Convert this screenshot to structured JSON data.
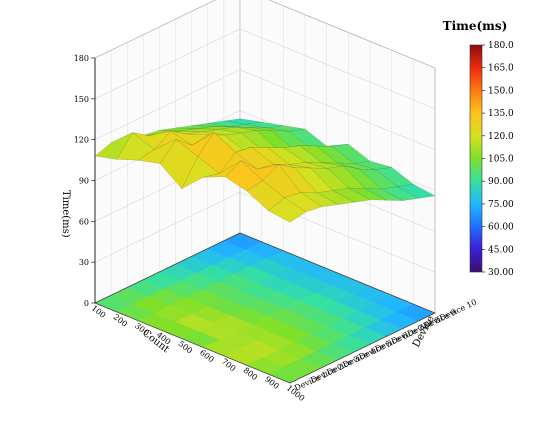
{
  "chart_data": {
    "type": "3d-surface",
    "zlabel": "Time(ms)",
    "xlabel": "Count",
    "ylabel": "Device",
    "z_ticks": [
      0,
      30,
      60,
      90,
      120,
      150,
      180
    ],
    "zlim": [
      0,
      180
    ],
    "x_ticks": [
      100,
      200,
      300,
      400,
      500,
      600,
      700,
      800,
      900,
      1000
    ],
    "xlim": [
      100,
      1000
    ],
    "y_ticks": [
      "Device 1",
      "Device 2",
      "Device 3",
      "Device 4",
      "Device 5",
      "Device 6",
      "Device 7",
      "Device 8",
      "Device 9",
      "Device 10"
    ],
    "colorbar": {
      "title": "Time(ms)",
      "ticks": [
        "30.00",
        "45.00",
        "60.00",
        "75.00",
        "90.00",
        "105.0",
        "120.0",
        "135.0",
        "150.0",
        "165.0",
        "180.0"
      ],
      "range": [
        30,
        180
      ],
      "colors": [
        "#3b0f70",
        "#3a1fd6",
        "#1f6fff",
        "#22b6ff",
        "#36e0a0",
        "#7fe02a",
        "#d8e020",
        "#ffc21a",
        "#ff7a10",
        "#f02a10",
        "#8a0d0d"
      ]
    },
    "series": [
      {
        "y": "Device 1",
        "values": [
          108,
          112,
          118,
          122,
          110,
          125,
          132,
          128,
          120,
          118
        ]
      },
      {
        "y": "Device 2",
        "values": [
          112,
          126,
          120,
          134,
          128,
          122,
          138,
          130,
          124,
          120
        ]
      },
      {
        "y": "Device 3",
        "values": [
          110,
          118,
          128,
          124,
          140,
          132,
          126,
          136,
          122,
          118
        ]
      },
      {
        "y": "Device 4",
        "values": [
          106,
          114,
          120,
          126,
          118,
          130,
          124,
          128,
          116,
          114
        ]
      },
      {
        "y": "Device 5",
        "values": [
          104,
          110,
          116,
          120,
          114,
          124,
          118,
          122,
          112,
          110
        ]
      },
      {
        "y": "Device 6",
        "values": [
          100,
          106,
          112,
          116,
          110,
          118,
          114,
          116,
          108,
          106
        ]
      },
      {
        "y": "Device 7",
        "values": [
          96,
          102,
          108,
          112,
          104,
          114,
          108,
          112,
          102,
          100
        ]
      },
      {
        "y": "Device 8",
        "values": [
          92,
          96,
          102,
          106,
          98,
          108,
          102,
          104,
          96,
          94
        ]
      },
      {
        "y": "Device 9",
        "values": [
          88,
          92,
          96,
          100,
          94,
          102,
          96,
          98,
          92,
          90
        ]
      },
      {
        "y": "Device 10",
        "values": [
          84,
          88,
          92,
          96,
          90,
          98,
          92,
          94,
          88,
          86
        ]
      }
    ]
  }
}
